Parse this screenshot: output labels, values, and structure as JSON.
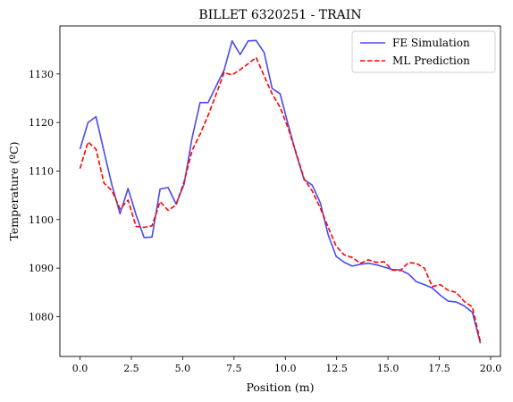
{
  "chart_data": {
    "type": "line",
    "title": "BILLET 6320251 - TRAIN",
    "xlabel": "Position (m)",
    "ylabel": "Temperature (ºC)",
    "xlim": [
      -0.98,
      20.48
    ],
    "ylim": [
      1071.8,
      1139.9
    ],
    "xticks": [
      0.0,
      2.5,
      5.0,
      7.5,
      10.0,
      12.5,
      15.0,
      17.5,
      20.0
    ],
    "xtick_labels": [
      "0.0",
      "2.5",
      "5.0",
      "7.5",
      "10.0",
      "12.5",
      "15.0",
      "17.5",
      "20.0"
    ],
    "yticks": [
      1080,
      1090,
      1100,
      1110,
      1120,
      1130
    ],
    "ytick_labels": [
      "1080",
      "1090",
      "1100",
      "1110",
      "1120",
      "1130"
    ],
    "grid": false,
    "legend_position": "top-right",
    "series": [
      {
        "name": "FE Simulation",
        "color": "#4a4af0",
        "style": "solid",
        "x": [
          0.0,
          0.39,
          0.78,
          1.17,
          1.56,
          1.95,
          2.34,
          2.73,
          3.12,
          3.51,
          3.9,
          4.29,
          4.68,
          5.07,
          5.46,
          5.85,
          6.24,
          6.63,
          7.02,
          7.41,
          7.8,
          8.19,
          8.58,
          8.97,
          9.36,
          9.75,
          10.14,
          10.53,
          10.92,
          11.31,
          11.7,
          12.09,
          12.48,
          12.87,
          13.26,
          13.65,
          14.04,
          14.43,
          14.82,
          15.21,
          15.6,
          15.99,
          16.38,
          16.77,
          17.16,
          17.55,
          17.94,
          18.33,
          18.72,
          19.11,
          19.5
        ],
        "y": [
          1114.5,
          1120.0,
          1121.2,
          1114.0,
          1107.0,
          1101.2,
          1106.4,
          1101.0,
          1096.3,
          1096.4,
          1106.3,
          1106.6,
          1103.2,
          1107.3,
          1116.8,
          1124.1,
          1124.1,
          1127.5,
          1130.8,
          1136.8,
          1134.0,
          1136.8,
          1136.9,
          1134.4,
          1127.0,
          1125.9,
          1119.5,
          1113.5,
          1108.2,
          1107.1,
          1103.5,
          1096.8,
          1092.4,
          1091.2,
          1090.4,
          1090.8,
          1091.0,
          1090.7,
          1090.2,
          1089.7,
          1089.6,
          1088.8,
          1087.2,
          1086.6,
          1085.9,
          1084.4,
          1083.2,
          1083.0,
          1082.2,
          1080.9,
          1074.5
        ]
      },
      {
        "name": "ML Prediction",
        "color": "#ff0000",
        "style": "dashed",
        "x": [
          0.0,
          0.39,
          0.78,
          1.17,
          1.56,
          1.95,
          2.34,
          2.73,
          3.12,
          3.51,
          3.9,
          4.29,
          4.68,
          5.07,
          5.46,
          5.85,
          6.24,
          6.63,
          7.02,
          7.41,
          7.8,
          8.19,
          8.58,
          8.97,
          9.36,
          9.75,
          10.14,
          10.53,
          10.92,
          11.31,
          11.7,
          12.09,
          12.48,
          12.87,
          13.26,
          13.65,
          14.04,
          14.43,
          14.82,
          15.21,
          15.6,
          15.99,
          16.38,
          16.77,
          17.16,
          17.55,
          17.94,
          18.33,
          18.72,
          19.11,
          19.5
        ],
        "y": [
          1110.5,
          1116.0,
          1114.5,
          1107.5,
          1105.9,
          1102.2,
          1104.0,
          1098.6,
          1098.4,
          1098.7,
          1103.7,
          1101.9,
          1103.0,
          1107.8,
          1114.2,
          1117.6,
          1121.5,
          1125.8,
          1130.3,
          1129.8,
          1130.9,
          1132.1,
          1133.4,
          1129.6,
          1125.9,
          1123.1,
          1118.8,
          1113.7,
          1108.3,
          1105.9,
          1102.4,
          1098.4,
          1094.5,
          1092.7,
          1092.2,
          1091.0,
          1091.7,
          1091.2,
          1091.3,
          1089.6,
          1089.5,
          1091.1,
          1091.0,
          1090.0,
          1086.2,
          1086.6,
          1085.4,
          1085.0,
          1083.1,
          1082.0,
          1074.8
        ]
      }
    ]
  }
}
